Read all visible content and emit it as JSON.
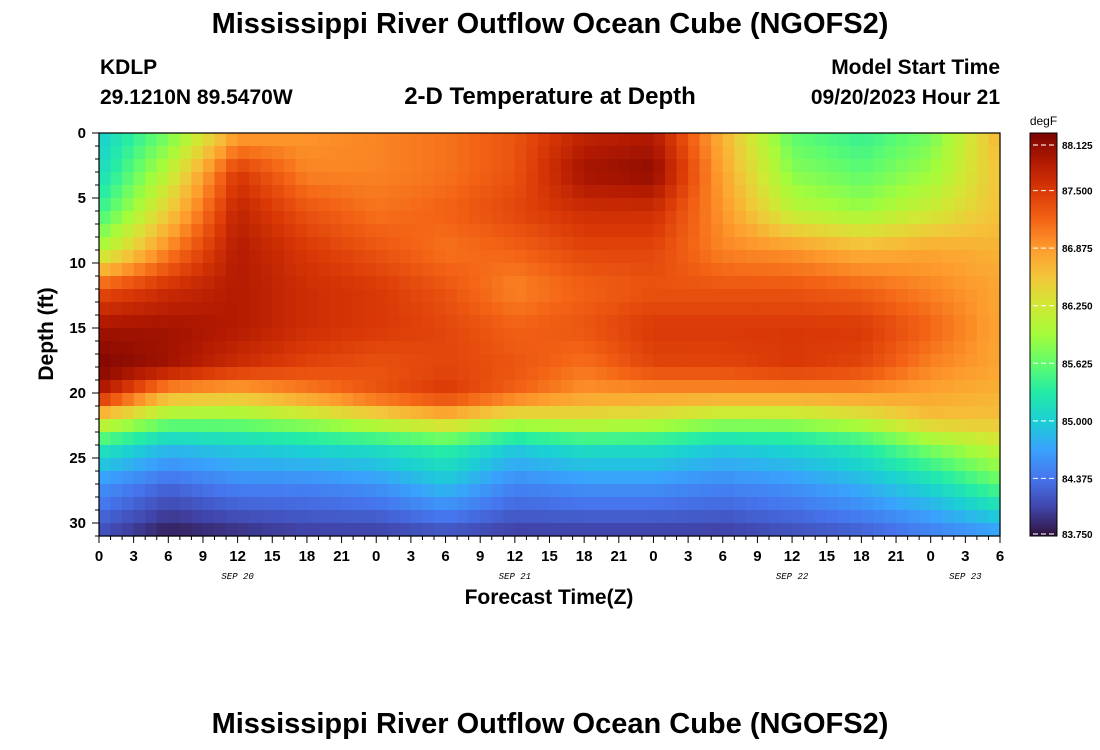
{
  "header": {
    "title": "Mississippi River Outflow Ocean Cube (NGOFS2)",
    "station_id": "KDLP",
    "station_coords": "29.1210N  89.5470W",
    "subtitle": "2-D Temperature at Depth",
    "model_start_label": "Model Start Time",
    "model_start_value": "09/20/2023 Hour 21"
  },
  "footer": {
    "title": "Mississippi River Outflow Ocean Cube (NGOFS2)"
  },
  "chart_data": {
    "type": "heatmap",
    "title": "2-D Temperature at Depth",
    "xlabel": "Forecast Time(Z)",
    "ylabel": "Depth (ft)",
    "x_tick_labels": [
      "0",
      "3",
      "6",
      "9",
      "12",
      "15",
      "18",
      "21",
      "0",
      "3",
      "6",
      "9",
      "12",
      "15",
      "18",
      "21",
      "0",
      "3",
      "6",
      "9",
      "12",
      "15",
      "18",
      "21",
      "0",
      "3",
      "6"
    ],
    "x_range_hours": [
      0,
      78
    ],
    "date_labels": [
      {
        "label": "SEP 20",
        "hour": 12
      },
      {
        "label": "SEP 21",
        "hour": 36
      },
      {
        "label": "SEP 22",
        "hour": 60
      },
      {
        "label": "SEP 23",
        "hour": 75
      }
    ],
    "y_ticks": [
      0,
      5,
      10,
      15,
      20,
      25,
      30
    ],
    "y_range": [
      0,
      31
    ],
    "y_inverted": true,
    "colorbar": {
      "unit": "degF",
      "min": 83.75,
      "max": 88.125,
      "tick_values": [
        88.125,
        87.5,
        86.875,
        86.25,
        85.625,
        85.0,
        84.375,
        83.75
      ],
      "tick_labels": [
        "88.125",
        "87.500",
        "86.875",
        "86.250",
        "85.625",
        "85.000",
        "84.375",
        "83.750"
      ],
      "colormap": [
        "#30123b",
        "#4145ab",
        "#4675ed",
        "#39a2fc",
        "#1bcfd4",
        "#24eca6",
        "#61fc6c",
        "#a4fc3b",
        "#d1e834",
        "#f3c63a",
        "#fe9b2d",
        "#f36315",
        "#d93806",
        "#b11901",
        "#7a0402"
      ]
    },
    "depth_profiles_degF": {
      "depths_ft": [
        0,
        3,
        6,
        9,
        12,
        15,
        18,
        20,
        22,
        24,
        27,
        31
      ],
      "hours": [
        0,
        6,
        12,
        18,
        24,
        30,
        36,
        42,
        48,
        54,
        60,
        66,
        72,
        78
      ],
      "values": [
        [
          85.0,
          85.7,
          86.8,
          86.9,
          87.0,
          87.1,
          87.3,
          87.7,
          87.8,
          86.7,
          85.6,
          85.4,
          85.7,
          86.7
        ],
        [
          85.1,
          86.1,
          87.5,
          87.0,
          87.0,
          87.1,
          87.3,
          87.9,
          88.0,
          86.8,
          85.8,
          85.6,
          85.9,
          86.6
        ],
        [
          85.4,
          86.5,
          87.7,
          87.3,
          87.1,
          87.2,
          87.4,
          87.6,
          87.6,
          86.9,
          86.1,
          85.9,
          86.2,
          86.6
        ],
        [
          86.0,
          87.0,
          87.8,
          87.5,
          87.3,
          87.1,
          87.2,
          87.4,
          87.4,
          87.0,
          86.9,
          86.7,
          86.8,
          86.7
        ],
        [
          87.3,
          87.6,
          87.8,
          87.6,
          87.5,
          87.3,
          87.0,
          87.2,
          87.3,
          87.3,
          87.3,
          87.2,
          87.0,
          86.8
        ],
        [
          87.9,
          87.9,
          87.8,
          87.6,
          87.5,
          87.4,
          87.2,
          87.3,
          87.5,
          87.5,
          87.5,
          87.5,
          87.2,
          86.8
        ],
        [
          88.1,
          87.9,
          87.6,
          87.4,
          87.3,
          87.4,
          87.3,
          87.1,
          87.4,
          87.4,
          87.5,
          87.4,
          87.0,
          86.8
        ],
        [
          87.8,
          86.8,
          86.7,
          87.0,
          87.3,
          87.5,
          87.2,
          86.9,
          86.9,
          86.9,
          86.9,
          86.9,
          86.8,
          86.7
        ],
        [
          86.4,
          85.8,
          85.8,
          86.0,
          86.3,
          86.6,
          86.2,
          86.3,
          86.2,
          86.0,
          86.0,
          86.2,
          86.6,
          86.6
        ],
        [
          85.3,
          84.9,
          85.0,
          85.1,
          85.2,
          85.4,
          85.0,
          85.2,
          85.2,
          85.0,
          85.1,
          85.3,
          85.8,
          86.2
        ],
        [
          84.6,
          84.3,
          84.5,
          84.5,
          84.6,
          84.9,
          84.5,
          84.6,
          84.6,
          84.5,
          84.6,
          84.8,
          85.1,
          85.6
        ],
        [
          84.1,
          83.8,
          83.9,
          84.0,
          84.0,
          84.1,
          84.0,
          84.0,
          84.0,
          84.0,
          84.1,
          84.2,
          84.4,
          84.6
        ]
      ]
    }
  }
}
